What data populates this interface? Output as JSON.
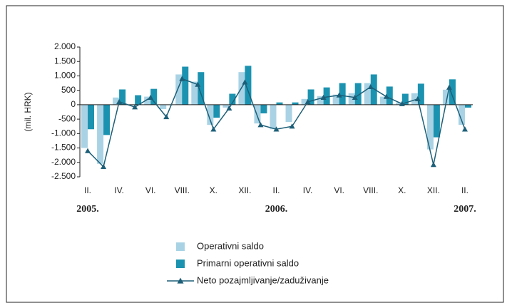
{
  "chart_data": {
    "type": "bar-line",
    "y_axis_label": "(mil. HRK)",
    "categories": [
      "II.",
      null,
      "IV.",
      null,
      "VI.",
      null,
      "VIII.",
      null,
      "X.",
      null,
      "XII.",
      null,
      "II.",
      null,
      "IV.",
      null,
      "VI.",
      null,
      "VIII.",
      null,
      "X.",
      null,
      "XII.",
      null,
      "II."
    ],
    "year_labels": [
      "2005.",
      null,
      null,
      null,
      null,
      null,
      null,
      null,
      null,
      null,
      null,
      null,
      "2006.",
      null,
      null,
      null,
      null,
      null,
      null,
      null,
      null,
      null,
      null,
      null,
      "2007."
    ],
    "series": [
      {
        "name": "Operativni saldo",
        "color": "#a9d3e5",
        "kind": "bar",
        "values": [
          -1500,
          -2050,
          250,
          0,
          280,
          -150,
          1050,
          800,
          -700,
          -100,
          1130,
          -650,
          -850,
          -600,
          200,
          300,
          350,
          400,
          750,
          280,
          80,
          400,
          -1550,
          520,
          -700
        ]
      },
      {
        "name": "Primarni operativni saldo",
        "color": "#1b93b0",
        "kind": "bar",
        "values": [
          -850,
          -1050,
          530,
          330,
          550,
          0,
          1320,
          1130,
          -450,
          380,
          1350,
          -300,
          80,
          80,
          530,
          600,
          750,
          750,
          1050,
          630,
          380,
          730,
          -1130,
          880,
          -100
        ]
      },
      {
        "name": "Neto pozajmljivanje/zaduživanje",
        "color": "#1d5f78",
        "kind": "line",
        "values": [
          -1600,
          -2150,
          100,
          -80,
          250,
          -420,
          900,
          700,
          -850,
          -120,
          780,
          -700,
          -850,
          -750,
          100,
          250,
          330,
          250,
          620,
          280,
          30,
          200,
          -2080,
          600,
          -850
        ]
      }
    ],
    "ylim": [
      -2500,
      2000
    ],
    "yticks": [
      {
        "value": 2000,
        "label": "2.000"
      },
      {
        "value": 1500,
        "label": "1.500"
      },
      {
        "value": 1000,
        "label": "1.000"
      },
      500,
      0,
      -500,
      {
        "value": -1000,
        "label": "-1.000"
      },
      {
        "value": -1500,
        "label": "-1.500"
      },
      {
        "value": -2000,
        "label": "-2.000"
      },
      {
        "value": -2500,
        "label": "-2.500"
      }
    ]
  }
}
